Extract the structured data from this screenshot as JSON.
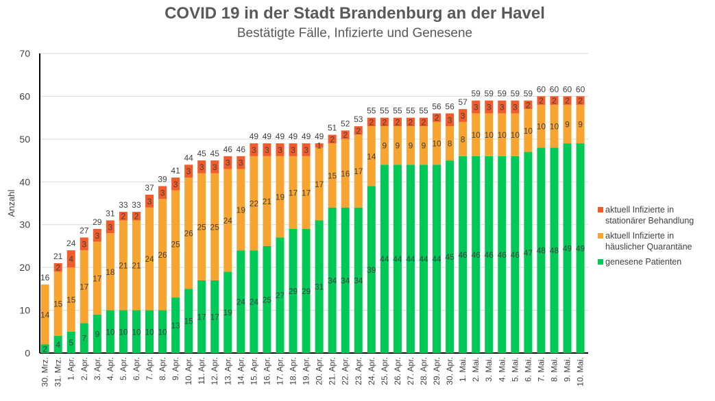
{
  "chart_data": {
    "type": "bar",
    "stacked": true,
    "title": "COVID 19 in der Stadt Brandenburg an der Havel",
    "subtitle": "Bestätigte Fälle, Infizierte und Genesene",
    "xlabel": "",
    "ylabel": "Anzahl",
    "ylim": [
      0,
      70
    ],
    "yticks": [
      0,
      10,
      20,
      30,
      40,
      50,
      60,
      70
    ],
    "grid": true,
    "legend_position": "right",
    "categories": [
      "30. Mrz.",
      "31. Mrz.",
      "1. Apr.",
      "2. Apr.",
      "3. Apr.",
      "4. Apr.",
      "5. Apr.",
      "6. Apr.",
      "7. Apr.",
      "8. Apr.",
      "9. Apr.",
      "10. Apr.",
      "11. Apr.",
      "12. Apr.",
      "13. Apr.",
      "14. Apr.",
      "15. Apr.",
      "16. Apr.",
      "17. Apr.",
      "18. Apr.",
      "19. Apr.",
      "20. Apr.",
      "21. Apr.",
      "22. Apr.",
      "23. Apr.",
      "24. Apr.",
      "25. Apr.",
      "26. Apr.",
      "27. Apr.",
      "28. Apr.",
      "29. Apr.",
      "30. Apr.",
      "1. Mai.",
      "2. Mai.",
      "3. Mai.",
      "4. Mai.",
      "5. Mai.",
      "6. Mai.",
      "7. Mai.",
      "8. Mai.",
      "9. Mai.",
      "10. Mai."
    ],
    "series": [
      {
        "name": "genesene Patienten",
        "color": "#00C957",
        "values": [
          2,
          4,
          5,
          7,
          9,
          10,
          10,
          10,
          10,
          10,
          13,
          15,
          17,
          17,
          19,
          24,
          24,
          25,
          27,
          29,
          29,
          31,
          34,
          34,
          34,
          39,
          44,
          44,
          44,
          44,
          44,
          45,
          46,
          46,
          46,
          46,
          46,
          47,
          48,
          48,
          49,
          49
        ]
      },
      {
        "name": "aktuell Infizierte in häuslicher Quarantäne",
        "color": "#F8A431",
        "values": [
          14,
          15,
          15,
          17,
          17,
          18,
          21,
          21,
          24,
          26,
          25,
          26,
          25,
          25,
          24,
          19,
          22,
          21,
          19,
          17,
          17,
          17,
          15,
          16,
          17,
          14,
          9,
          9,
          9,
          9,
          10,
          8,
          8,
          10,
          10,
          10,
          10,
          10,
          10,
          10,
          9,
          9
        ]
      },
      {
        "name": "aktuell Infizierte in stationärer Behandlung",
        "color": "#F25C2A",
        "values": [
          0,
          2,
          4,
          3,
          3,
          3,
          2,
          2,
          3,
          3,
          3,
          3,
          3,
          3,
          3,
          3,
          3,
          3,
          3,
          3,
          3,
          1,
          2,
          2,
          2,
          2,
          2,
          2,
          2,
          2,
          2,
          3,
          3,
          3,
          3,
          3,
          3,
          2,
          2,
          2,
          2,
          2
        ]
      }
    ],
    "totals": [
      16,
      21,
      24,
      27,
      29,
      31,
      33,
      33,
      37,
      39,
      41,
      44,
      45,
      45,
      46,
      46,
      49,
      49,
      49,
      49,
      49,
      49,
      51,
      52,
      53,
      55,
      55,
      55,
      55,
      55,
      56,
      56,
      57,
      59,
      59,
      59,
      59,
      59,
      60,
      60,
      60,
      60
    ]
  }
}
